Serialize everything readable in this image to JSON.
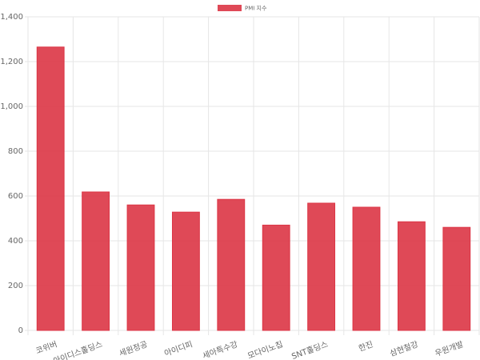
{
  "chart_data": {
    "type": "bar",
    "categories": [
      "코위버",
      "아이디스홀딩스",
      "세원정공",
      "아이디피",
      "세아특수강",
      "모다이노칩",
      "SNT홀딩스",
      "한진",
      "삼현철강",
      "우원개발"
    ],
    "series": [
      {
        "name": "PMI 지수",
        "color": "#dc3545",
        "values": [
          1265,
          618,
          560,
          528,
          585,
          470,
          568,
          550,
          485,
          460
        ]
      }
    ],
    "ylim": [
      0,
      1400
    ],
    "yticks": [
      0,
      200,
      400,
      600,
      800,
      {
        "value": 1000,
        "label": "1,000"
      },
      {
        "value": 1200,
        "label": "1,200"
      },
      {
        "value": 1400,
        "label": "1,400"
      }
    ],
    "grid": true,
    "legend": "top"
  }
}
